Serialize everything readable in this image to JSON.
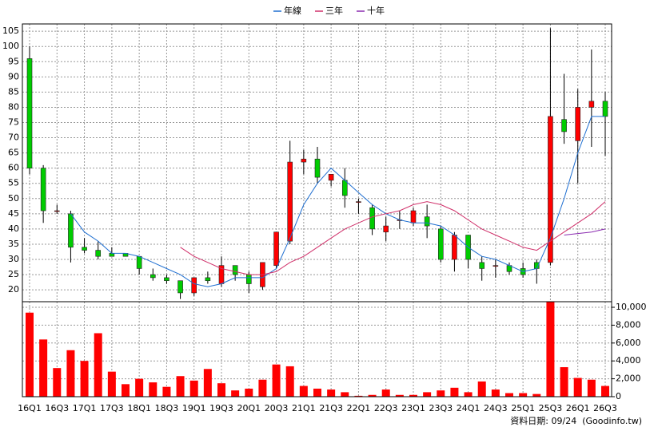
{
  "chart_data": {
    "type": "candlestick",
    "categories": [
      "16Q1",
      null,
      "16Q3",
      null,
      "17Q1",
      null,
      "17Q3",
      null,
      "18Q1",
      null,
      "18Q3",
      null,
      "19Q1",
      null,
      "19Q3",
      null,
      "20Q1",
      null,
      "20Q3",
      null,
      "21Q1",
      null,
      "21Q3",
      null,
      "22Q1",
      null,
      "22Q3",
      null,
      "23Q1",
      null,
      "23Q3",
      null,
      "24Q1",
      null,
      "24Q3",
      null,
      "25Q1",
      null,
      "25Q3",
      null,
      "26Q1",
      null,
      "26Q3"
    ],
    "open": [
      96,
      60,
      46,
      45,
      34,
      33,
      32,
      32,
      31,
      25,
      24,
      23,
      19,
      24,
      22,
      28,
      25,
      21,
      28,
      36,
      62,
      63,
      56,
      56,
      49,
      47,
      39,
      43,
      42,
      44,
      40,
      30,
      38,
      29,
      28,
      28,
      27,
      29,
      29,
      76,
      69,
      80,
      82
    ],
    "high": [
      100,
      61,
      48,
      46,
      37,
      36,
      34,
      32,
      31,
      27,
      25,
      23,
      24,
      26,
      31,
      28,
      26,
      29,
      39,
      69,
      66,
      67,
      58,
      60,
      50,
      48,
      44,
      46,
      47,
      48,
      41,
      39,
      38,
      31,
      30,
      29,
      29,
      30,
      106,
      91,
      86,
      99,
      85
    ],
    "low": [
      58,
      42,
      45,
      29,
      32,
      30,
      31,
      31,
      25,
      23,
      22,
      17,
      18,
      22,
      21,
      23,
      19,
      20,
      27,
      35,
      58,
      55,
      54,
      47,
      45,
      38,
      36,
      40,
      41,
      37,
      29,
      26,
      27,
      23,
      24,
      25,
      24,
      22,
      28,
      68,
      55,
      67,
      64
    ],
    "close": [
      60,
      46,
      46,
      34,
      33,
      31,
      31,
      31,
      27,
      24,
      23,
      19,
      24,
      23,
      28,
      25,
      22,
      29,
      39,
      62,
      63,
      57,
      58,
      51,
      49,
      40,
      41,
      43,
      46,
      41,
      30,
      38,
      30,
      27,
      28,
      26,
      25,
      27,
      77,
      72,
      80,
      82,
      77
    ],
    "up_color": "#ff0000",
    "down_color": "#00cc00",
    "ylim": [
      16.1,
      107.4
    ],
    "yticks": [
      20,
      25,
      30,
      35,
      40,
      45,
      50,
      55,
      60,
      65,
      70,
      75,
      80,
      85,
      90,
      95,
      100,
      105
    ],
    "grid": true,
    "lines": [
      {
        "name": "年線",
        "color": "#1f6fd1",
        "values": [
          null,
          null,
          null,
          45,
          39,
          36,
          32,
          32,
          31,
          29,
          27,
          25,
          22,
          21,
          22,
          24,
          24,
          24,
          27,
          37,
          48,
          55,
          60,
          56,
          52,
          48,
          45,
          43,
          42,
          42,
          41,
          38,
          34,
          31,
          30,
          28,
          26,
          27,
          37,
          50,
          65,
          77,
          77
        ]
      },
      {
        "name": "三年",
        "color": "#d0306a",
        "values": [
          null,
          null,
          null,
          null,
          null,
          null,
          null,
          null,
          null,
          null,
          null,
          34,
          31,
          29,
          27,
          26,
          25,
          25,
          26,
          29,
          31,
          34,
          37,
          40,
          42,
          44,
          45,
          46,
          48,
          49,
          48,
          46,
          43,
          40,
          38,
          36,
          34,
          33,
          36,
          39,
          42,
          45,
          49
        ]
      },
      {
        "name": "十年",
        "color": "#8a2bb0",
        "values": [
          null,
          null,
          null,
          null,
          null,
          null,
          null,
          null,
          null,
          null,
          null,
          null,
          null,
          null,
          null,
          null,
          null,
          null,
          null,
          null,
          null,
          null,
          null,
          null,
          null,
          null,
          null,
          null,
          null,
          null,
          null,
          null,
          null,
          null,
          null,
          null,
          null,
          null,
          null,
          38,
          38.5,
          39,
          40
        ]
      }
    ],
    "volume": {
      "color": "#ff0000",
      "values": [
        9400,
        6400,
        3200,
        5200,
        4000,
        7100,
        2800,
        1400,
        2000,
        1600,
        1100,
        2300,
        1800,
        3100,
        1500,
        700,
        900,
        1900,
        3600,
        3400,
        1200,
        900,
        800,
        500,
        100,
        200,
        800,
        200,
        200,
        500,
        700,
        1000,
        500,
        1700,
        800,
        400,
        400,
        300,
        10600,
        3300,
        2100,
        1900,
        1200
      ],
      "ylim": [
        0,
        10625
      ],
      "yticks": [
        {
          "value": 10000,
          "label": "10,000"
        },
        {
          "value": 8000,
          "label": "8,000"
        },
        {
          "value": 6000,
          "label": "6,000"
        },
        {
          "value": 4000,
          "label": "4,000"
        },
        {
          "value": 2000,
          "label": "2,000"
        },
        0
      ]
    },
    "note": "資料日期: 09/24  (Goodinfo.tw)"
  }
}
